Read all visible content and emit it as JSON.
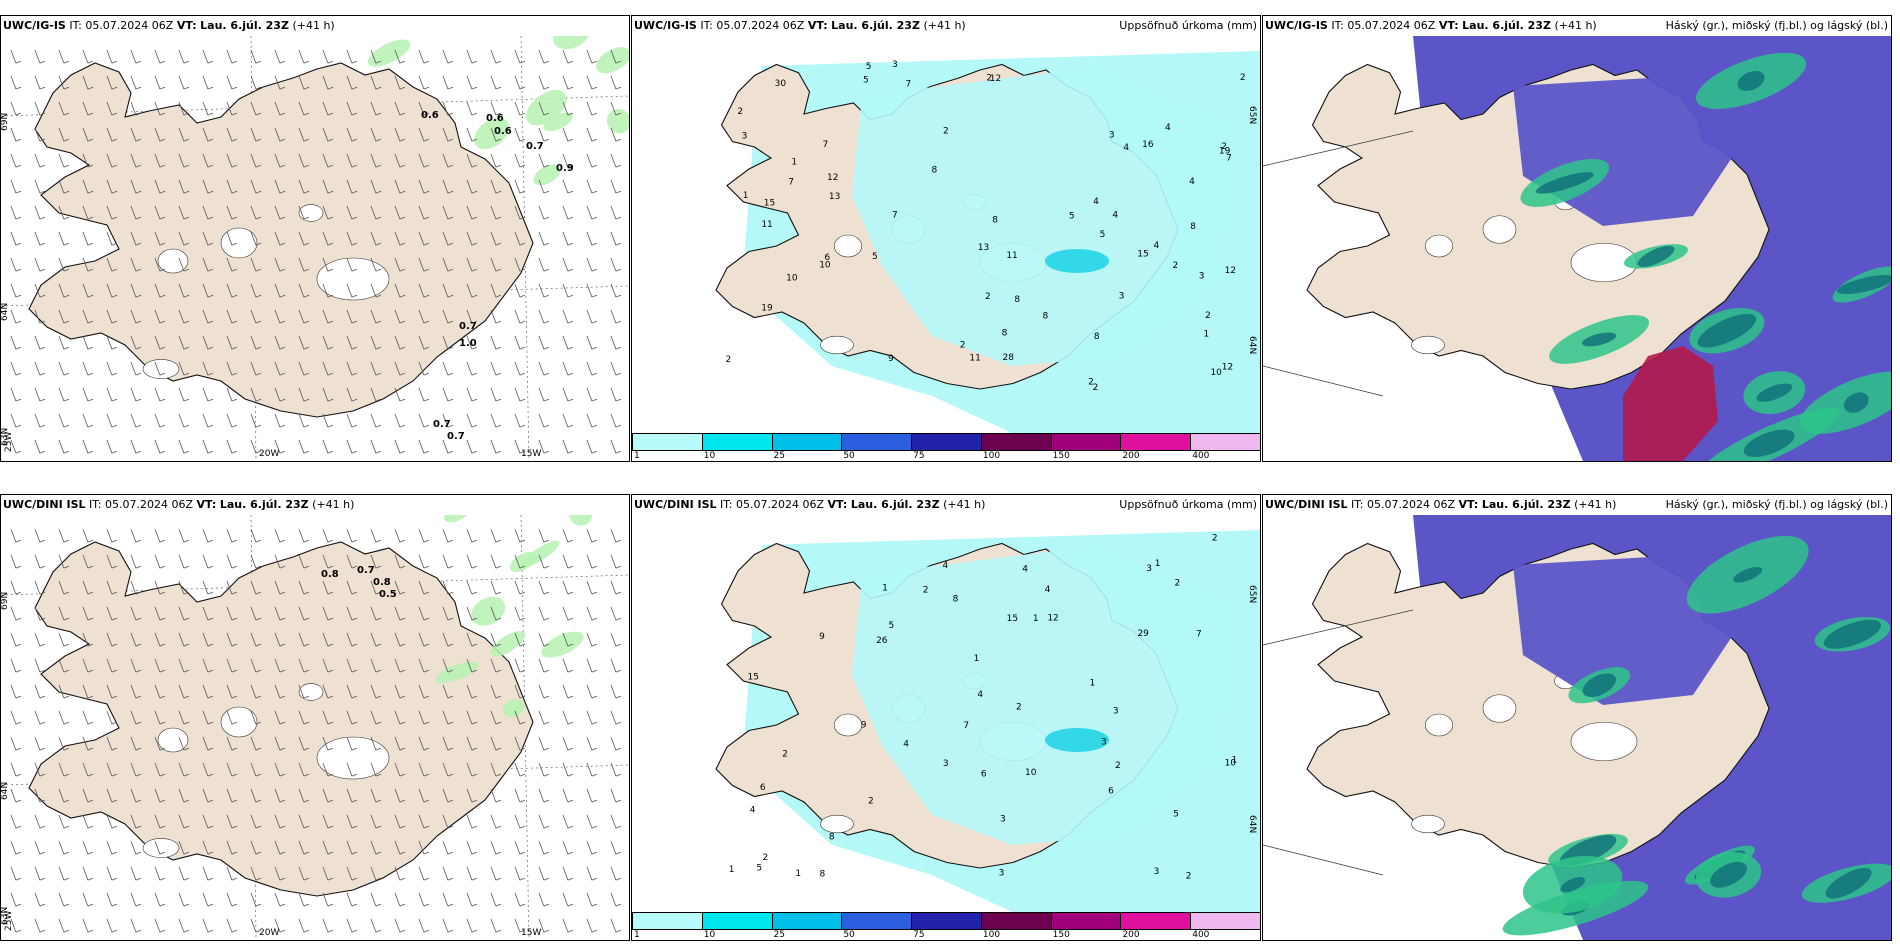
{
  "panels": [
    {
      "model": "UWC/IG-IS",
      "it": "IT: 05.07.2024 06Z",
      "vt_label": "VT:",
      "vt": "Lau. 6.júl. 23Z",
      "lead": "(+41 h)",
      "right_title": "",
      "lat_labels": [
        "69N",
        "64N",
        "63N"
      ],
      "lon_labels": [
        "25W",
        "20W",
        "15W"
      ],
      "values": [
        "0.6",
        "0.6",
        "0.6",
        "0.7",
        "0.9",
        "0.7",
        "1.0",
        "0.7",
        "0.7"
      ]
    },
    {
      "model": "UWC/IG-IS",
      "it": "IT: 05.07.2024 06Z",
      "vt_label": "VT:",
      "vt": "Lau. 6.júl. 23Z",
      "lead": "(+41 h)",
      "right_title": "Uppsöfnuð úrkoma (mm)",
      "lat_labels": [
        "65N",
        "64N"
      ],
      "values": [
        "2",
        "2",
        "4",
        "4",
        "2",
        "2",
        "7",
        "6",
        "11",
        "11",
        "12",
        "4",
        "4",
        "2",
        "8",
        "7",
        "10",
        "7",
        "10",
        "15",
        "13",
        "8",
        "3",
        "5",
        "12",
        "12",
        "11",
        "9",
        "8",
        "10",
        "13",
        "3",
        "19",
        "7",
        "5",
        "8",
        "8",
        "12",
        "15",
        "16",
        "19",
        "28",
        "30",
        "8",
        "5",
        "4",
        "5",
        "7",
        "3",
        "2",
        "1",
        "1",
        "2",
        "3",
        "2",
        "2",
        "4",
        "3",
        "8",
        "2",
        "5",
        "2",
        "1",
        "2"
      ]
    },
    {
      "model": "UWC/IG-IS",
      "it": "IT: 05.07.2024 06Z",
      "vt_label": "VT:",
      "vt": "Lau. 6.júl. 23Z",
      "lead": "(+41 h)",
      "right_title": "Háský (gr.), miðský (fj.bl.) og lágský (bl.)"
    },
    {
      "model": "UWC/DINI ISL",
      "it": "IT: 05.07.2024 06Z",
      "vt_label": "VT:",
      "vt": "Lau. 6.júl. 23Z",
      "lead": "(+41 h)",
      "right_title": "",
      "lat_labels": [
        "69N",
        "64N",
        "63N"
      ],
      "lon_labels": [
        "25W",
        "20W",
        "15W"
      ],
      "values": [
        "0.8",
        "0.7",
        "0.8",
        "0.5"
      ]
    },
    {
      "model": "UWC/DINI ISL",
      "it": "IT: 05.07.2024 06Z",
      "vt_label": "VT:",
      "vt": "Lau. 6.júl. 23Z",
      "lead": "(+41 h)",
      "right_title": "Uppsöfnuð úrkoma (mm)",
      "lat_labels": [
        "65N",
        "64N"
      ],
      "values": [
        "1",
        "2",
        "2",
        "3",
        "3",
        "7",
        "4",
        "4",
        "3",
        "9",
        "8",
        "9",
        "4",
        "2",
        "5",
        "6",
        "5",
        "8",
        "10",
        "7",
        "3",
        "12",
        "15",
        "8",
        "4",
        "5",
        "6",
        "10",
        "26",
        "29",
        "15",
        "6",
        "4",
        "2",
        "3",
        "1",
        "2",
        "1",
        "1",
        "2",
        "1",
        "4",
        "3",
        "1",
        "1",
        "2",
        "3",
        "2",
        "1",
        "2"
      ]
    },
    {
      "model": "UWC/DINI ISL",
      "it": "IT: 05.07.2024 06Z",
      "vt_label": "VT:",
      "vt": "Lau. 6.júl. 23Z",
      "lead": "(+41 h)",
      "right_title": "Háský (gr.), miðský (fj.bl.) og lágský (bl.)"
    }
  ],
  "colorbar": {
    "labels": [
      "1",
      "10",
      "25",
      "50",
      "75",
      "100",
      "150",
      "200",
      "400"
    ],
    "colors": [
      "#b8fbfb",
      "#00e6ef",
      "#00bfe8",
      "#2c5fe0",
      "#2222aa",
      "#6e0050",
      "#a0007a",
      "#e0109e",
      "#f0b8f0"
    ]
  },
  "colors": {
    "land": "#efe1d2",
    "precip": "#b4f8f8",
    "precip_hi": "#33d8e8",
    "cloud_low": "#5b55c8",
    "cloud_green": "#2ec48a",
    "cloud_teal": "#0f6e78",
    "wind_green": "#b6f2b2",
    "red": "#b31a4a"
  }
}
